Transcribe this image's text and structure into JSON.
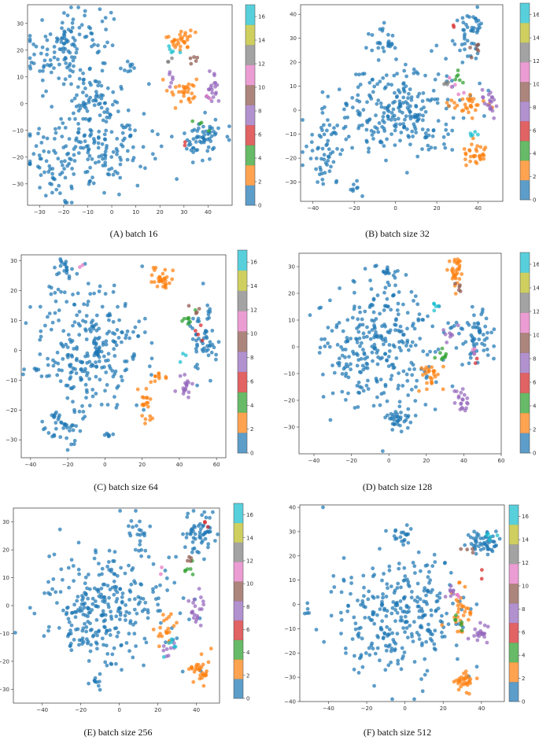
{
  "figure": {
    "colors": {
      "palette": [
        "#1f77b4",
        "#ff7f0e",
        "#2ca02c",
        "#d62728",
        "#9467bd",
        "#8c564b",
        "#e377c2",
        "#7f7f7f",
        "#bcbd22",
        "#17becf"
      ],
      "background": "#ffffff"
    }
  },
  "chart_data": [
    {
      "type": "scatter",
      "panel_id": "a",
      "caption": "(A) batch 16",
      "xlim": [
        -35,
        50
      ],
      "ylim": [
        -38,
        37
      ],
      "xticks": [
        -30,
        -20,
        -10,
        0,
        10,
        20,
        30,
        40
      ],
      "yticks": [
        -30,
        -20,
        -10,
        0,
        10,
        20,
        30
      ],
      "colorbar": {
        "ticks": [
          0,
          2,
          4,
          6,
          8,
          10,
          12,
          14,
          16
        ],
        "range": [
          0,
          17
        ]
      },
      "clusters": [
        {
          "c": 0,
          "x": -18,
          "y": 20,
          "sx": 9,
          "sy": 9,
          "n": 150
        },
        {
          "c": 0,
          "x": -20,
          "y": -22,
          "sx": 9,
          "sy": 7,
          "n": 100
        },
        {
          "c": 0,
          "x": 0,
          "y": -12,
          "sx": 9,
          "sy": 9,
          "n": 120
        },
        {
          "c": 0,
          "x": -8,
          "y": -2,
          "sx": 5,
          "sy": 4,
          "n": 30
        },
        {
          "c": 0,
          "x": 7,
          "y": 13,
          "sx": 2,
          "sy": 2,
          "n": 8
        },
        {
          "c": 0,
          "x": 38,
          "y": -13,
          "sx": 4,
          "sy": 4,
          "n": 60
        },
        {
          "c": 1,
          "x": 29,
          "y": 24,
          "sx": 3,
          "sy": 2,
          "n": 30
        },
        {
          "c": 1,
          "x": 30,
          "y": 5,
          "sx": 3,
          "sy": 3,
          "n": 30
        },
        {
          "c": 4,
          "x": 42,
          "y": 6,
          "sx": 2,
          "sy": 3,
          "n": 20
        },
        {
          "c": 4,
          "x": 24,
          "y": 10,
          "sx": 1.5,
          "sy": 1.5,
          "n": 6
        },
        {
          "c": 9,
          "x": 25,
          "y": 20,
          "sx": 1.5,
          "sy": 1.5,
          "n": 5
        },
        {
          "c": 5,
          "x": 33,
          "y": 17,
          "sx": 1.5,
          "sy": 1,
          "n": 5
        },
        {
          "c": 2,
          "x": 36,
          "y": -7,
          "sx": 1.5,
          "sy": 1.5,
          "n": 4
        },
        {
          "c": 3,
          "x": 30,
          "y": -14,
          "sx": 1,
          "sy": 1,
          "n": 2
        },
        {
          "c": 7,
          "x": 24,
          "y": 16,
          "sx": 1,
          "sy": 1,
          "n": 3
        },
        {
          "c": 6,
          "x": 40,
          "y": 4,
          "sx": 1,
          "sy": 1,
          "n": 2
        }
      ]
    },
    {
      "type": "scatter",
      "panel_id": "b",
      "caption": "(B) batch size 32",
      "xlim": [
        -46,
        52
      ],
      "ylim": [
        -38,
        44
      ],
      "xticks": [
        -40,
        -20,
        0,
        20,
        40
      ],
      "yticks": [
        -30,
        -20,
        -10,
        0,
        10,
        20,
        30,
        40
      ],
      "colorbar": {
        "ticks": [
          0,
          2,
          4,
          6,
          8,
          10,
          12,
          14,
          16
        ],
        "range": [
          0,
          17
        ]
      },
      "clusters": [
        {
          "c": 0,
          "x": 0,
          "y": 0,
          "sx": 16,
          "sy": 10,
          "n": 260
        },
        {
          "c": 0,
          "x": -35,
          "y": -18,
          "sx": 5,
          "sy": 7,
          "n": 50
        },
        {
          "c": 0,
          "x": -5,
          "y": 29,
          "sx": 3,
          "sy": 3,
          "n": 25
        },
        {
          "c": 0,
          "x": 36,
          "y": 32,
          "sx": 4,
          "sy": 5,
          "n": 45
        },
        {
          "c": 0,
          "x": -20,
          "y": -33,
          "sx": 2,
          "sy": 1.5,
          "n": 8
        },
        {
          "c": 1,
          "x": 39,
          "y": -18,
          "sx": 3,
          "sy": 2,
          "n": 30
        },
        {
          "c": 1,
          "x": 35,
          "y": 3,
          "sx": 5,
          "sy": 2,
          "n": 30
        },
        {
          "c": 4,
          "x": 45,
          "y": 3,
          "sx": 2,
          "sy": 3,
          "n": 20
        },
        {
          "c": 9,
          "x": 37,
          "y": -11,
          "sx": 1.5,
          "sy": 1.5,
          "n": 5
        },
        {
          "c": 5,
          "x": 38,
          "y": 25,
          "sx": 1.5,
          "sy": 1.5,
          "n": 6
        },
        {
          "c": 2,
          "x": 30,
          "y": 14,
          "sx": 2,
          "sy": 2,
          "n": 6
        },
        {
          "c": 6,
          "x": 28,
          "y": 10,
          "sx": 2,
          "sy": 2,
          "n": 5
        },
        {
          "c": 3,
          "x": 28,
          "y": 35,
          "sx": 1,
          "sy": 1,
          "n": 2
        },
        {
          "c": 7,
          "x": 24,
          "y": 12,
          "sx": 1.5,
          "sy": 1.5,
          "n": 4
        }
      ]
    },
    {
      "type": "scatter",
      "panel_id": "c",
      "caption": "(C) batch size 64",
      "xlim": [
        -45,
        65
      ],
      "ylim": [
        -36,
        32
      ],
      "xticks": [
        -40,
        -20,
        0,
        20,
        40,
        60
      ],
      "yticks": [
        -30,
        -20,
        -10,
        0,
        10,
        20,
        30
      ],
      "colorbar": {
        "ticks": [
          0,
          2,
          4,
          6,
          8,
          10,
          12,
          14,
          16
        ],
        "range": [
          0,
          17
        ]
      },
      "clusters": [
        {
          "c": 0,
          "x": -8,
          "y": 0,
          "sx": 15,
          "sy": 11,
          "n": 270
        },
        {
          "c": 0,
          "x": -22,
          "y": 27,
          "sx": 3,
          "sy": 2,
          "n": 20
        },
        {
          "c": 0,
          "x": -22,
          "y": -25,
          "sx": 5,
          "sy": 4,
          "n": 40
        },
        {
          "c": 0,
          "x": 53,
          "y": 3,
          "sx": 4,
          "sy": 6,
          "n": 55
        },
        {
          "c": 0,
          "x": 2,
          "y": -28,
          "sx": 1.5,
          "sy": 1,
          "n": 6
        },
        {
          "c": 1,
          "x": 30,
          "y": 24,
          "sx": 3,
          "sy": 2,
          "n": 30
        },
        {
          "c": 1,
          "x": 22,
          "y": -19,
          "sx": 2,
          "sy": 3,
          "n": 20
        },
        {
          "c": 1,
          "x": 28,
          "y": -9,
          "sx": 3,
          "sy": 1,
          "n": 10
        },
        {
          "c": 4,
          "x": 43,
          "y": -12,
          "sx": 2,
          "sy": 2,
          "n": 18
        },
        {
          "c": 2,
          "x": 45,
          "y": 10,
          "sx": 2,
          "sy": 1.5,
          "n": 8
        },
        {
          "c": 3,
          "x": 50,
          "y": 5,
          "sx": 2,
          "sy": 3,
          "n": 4
        },
        {
          "c": 5,
          "x": 48,
          "y": 13,
          "sx": 1.5,
          "sy": 1.5,
          "n": 4
        },
        {
          "c": 6,
          "x": -13,
          "y": 29,
          "sx": 1,
          "sy": 1,
          "n": 2
        },
        {
          "c": 9,
          "x": 42,
          "y": -2,
          "sx": 1,
          "sy": 1,
          "n": 3
        }
      ]
    },
    {
      "type": "scatter",
      "panel_id": "d",
      "caption": "(D) batch size 128",
      "xlim": [
        -48,
        60
      ],
      "ylim": [
        -40,
        35
      ],
      "xticks": [
        -40,
        -20,
        0,
        20,
        40,
        60
      ],
      "yticks": [
        -30,
        -20,
        -10,
        0,
        10,
        20,
        30
      ],
      "colorbar": {
        "ticks": [
          0,
          2,
          4,
          6,
          8,
          10,
          12,
          14,
          16
        ],
        "range": [
          0,
          17
        ]
      },
      "clusters": [
        {
          "c": 0,
          "x": -5,
          "y": 0,
          "sx": 16,
          "sy": 12,
          "n": 300
        },
        {
          "c": 0,
          "x": 5,
          "y": -27,
          "sx": 4,
          "sy": 4,
          "n": 35
        },
        {
          "c": 0,
          "x": 0,
          "y": 27,
          "sx": 3,
          "sy": 2,
          "n": 15
        },
        {
          "c": 0,
          "x": 48,
          "y": 3,
          "sx": 4,
          "sy": 5,
          "n": 55
        },
        {
          "c": 1,
          "x": 36,
          "y": 28,
          "sx": 2,
          "sy": 3,
          "n": 30
        },
        {
          "c": 1,
          "x": 22,
          "y": -11,
          "sx": 3,
          "sy": 3,
          "n": 25
        },
        {
          "c": 4,
          "x": 38,
          "y": -20,
          "sx": 2,
          "sy": 2,
          "n": 20
        },
        {
          "c": 2,
          "x": 28,
          "y": -3,
          "sx": 2,
          "sy": 2,
          "n": 8
        },
        {
          "c": 5,
          "x": 36,
          "y": 22,
          "sx": 1,
          "sy": 1,
          "n": 5
        },
        {
          "c": 9,
          "x": 26,
          "y": 15,
          "sx": 1.5,
          "sy": 1,
          "n": 5
        },
        {
          "c": 6,
          "x": 45,
          "y": -2,
          "sx": 1,
          "sy": 1,
          "n": 3
        },
        {
          "c": 3,
          "x": 47,
          "y": -4,
          "sx": 1,
          "sy": 1,
          "n": 2
        },
        {
          "c": 4,
          "x": 33,
          "y": 5,
          "sx": 2,
          "sy": 2,
          "n": 8
        }
      ]
    },
    {
      "type": "scatter",
      "panel_id": "e",
      "caption": "(E) batch size 256",
      "xlim": [
        -55,
        52
      ],
      "ylim": [
        -35,
        35
      ],
      "xticks": [
        -40,
        -20,
        0,
        20,
        40
      ],
      "yticks": [
        -30,
        -20,
        -10,
        0,
        10,
        20,
        30
      ],
      "colorbar": {
        "ticks": [
          0,
          2,
          4,
          6,
          8,
          10,
          12,
          14,
          16
        ],
        "range": [
          0,
          17
        ]
      },
      "clusters": [
        {
          "c": 0,
          "x": -8,
          "y": 0,
          "sx": 17,
          "sy": 11,
          "n": 300
        },
        {
          "c": 0,
          "x": 42,
          "y": 26,
          "sx": 4,
          "sy": 4,
          "n": 55
        },
        {
          "c": 0,
          "x": -12,
          "y": -28,
          "sx": 2,
          "sy": 2,
          "n": 10
        },
        {
          "c": 0,
          "x": 10,
          "y": 25,
          "sx": 3,
          "sy": 4,
          "n": 20
        },
        {
          "c": 1,
          "x": 42,
          "y": -22,
          "sx": 3,
          "sy": 3,
          "n": 30
        },
        {
          "c": 1,
          "x": 24,
          "y": -8,
          "sx": 3,
          "sy": 3,
          "n": 20
        },
        {
          "c": 4,
          "x": 40,
          "y": -2,
          "sx": 2,
          "sy": 3,
          "n": 20
        },
        {
          "c": 4,
          "x": 25,
          "y": -17,
          "sx": 2,
          "sy": 2,
          "n": 8
        },
        {
          "c": 2,
          "x": 35,
          "y": 14,
          "sx": 1.5,
          "sy": 2,
          "n": 6
        },
        {
          "c": 9,
          "x": 28,
          "y": -15,
          "sx": 2,
          "sy": 1.5,
          "n": 6
        },
        {
          "c": 5,
          "x": 36,
          "y": 18,
          "sx": 1,
          "sy": 1,
          "n": 4
        },
        {
          "c": 3,
          "x": 45,
          "y": 30,
          "sx": 1,
          "sy": 1,
          "n": 3
        },
        {
          "c": 6,
          "x": 22,
          "y": 12,
          "sx": 1,
          "sy": 1,
          "n": 2
        }
      ]
    },
    {
      "type": "scatter",
      "panel_id": "f",
      "caption": "(F) batch size 512",
      "xlim": [
        -55,
        52
      ],
      "ylim": [
        -40,
        41
      ],
      "xticks": [
        -40,
        -20,
        0,
        20,
        40
      ],
      "yticks": [
        -40,
        -30,
        -20,
        -10,
        0,
        10,
        20,
        30,
        40
      ],
      "colorbar": {
        "ticks": [
          0,
          2,
          4,
          6,
          8,
          10,
          12,
          14,
          16
        ],
        "range": [
          0,
          17
        ]
      },
      "clusters": [
        {
          "c": 0,
          "x": -5,
          "y": -3,
          "sx": 17,
          "sy": 12,
          "n": 300
        },
        {
          "c": 0,
          "x": 42,
          "y": 26,
          "sx": 4,
          "sy": 3,
          "n": 50
        },
        {
          "c": 0,
          "x": -2,
          "y": 29,
          "sx": 3,
          "sy": 2,
          "n": 18
        },
        {
          "c": 0,
          "x": -50,
          "y": -2,
          "sx": 1.5,
          "sy": 1.5,
          "n": 5
        },
        {
          "c": 1,
          "x": 30,
          "y": -32,
          "sx": 3,
          "sy": 2,
          "n": 30
        },
        {
          "c": 1,
          "x": 30,
          "y": -3,
          "sx": 3,
          "sy": 6,
          "n": 30
        },
        {
          "c": 4,
          "x": 40,
          "y": -11,
          "sx": 2,
          "sy": 2,
          "n": 20
        },
        {
          "c": 4,
          "x": 25,
          "y": 6,
          "sx": 2,
          "sy": 2,
          "n": 8
        },
        {
          "c": 2,
          "x": 28,
          "y": -7,
          "sx": 1.5,
          "sy": 2,
          "n": 6
        },
        {
          "c": 9,
          "x": 44,
          "y": 28,
          "sx": 2,
          "sy": 2,
          "n": 5
        },
        {
          "c": 5,
          "x": 33,
          "y": 22,
          "sx": 1.5,
          "sy": 1.5,
          "n": 4
        },
        {
          "c": 3,
          "x": 38,
          "y": 13,
          "sx": 1,
          "sy": 1,
          "n": 2
        },
        {
          "c": 6,
          "x": 28,
          "y": 3,
          "sx": 1,
          "sy": 1,
          "n": 3
        }
      ]
    }
  ]
}
